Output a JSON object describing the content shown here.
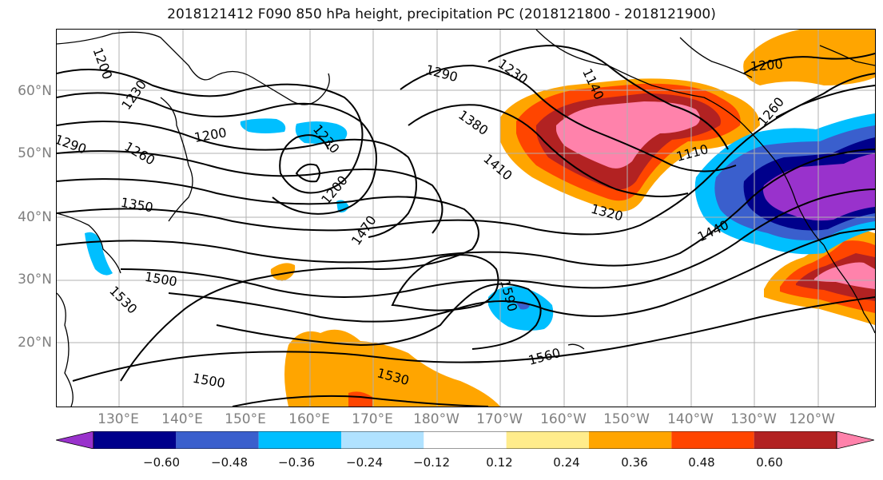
{
  "title": "2018121412 F090 850 hPa height, precipitation PC (2018121800 - 2018121900)",
  "lat_labels": [
    "60°N",
    "50°N",
    "40°N",
    "30°N",
    "20°N"
  ],
  "lon_labels": [
    "130°E",
    "140°E",
    "150°E",
    "160°E",
    "170°E",
    "180°W",
    "170°W",
    "160°W",
    "150°W",
    "140°W",
    "130°W",
    "120°W"
  ],
  "contour_labels": [
    "1200",
    "1230",
    "1290",
    "1260",
    "1350",
    "1500",
    "1530",
    "1200",
    "1230",
    "1200",
    "1470",
    "1500",
    "1530",
    "1590",
    "1560",
    "1290",
    "1230",
    "1140",
    "1380",
    "1410",
    "1320",
    "1110",
    "1440",
    "1200",
    "1260"
  ],
  "colorbar": {
    "colors": [
      "#9932cc",
      "#00008b",
      "#3a5fcd",
      "#00bfff",
      "#b0e2ff",
      "#ffffff",
      "#ffec8b",
      "#ffa500",
      "#ff4500",
      "#b22222",
      "#ff82ab"
    ],
    "tick_labels": [
      "−0.60",
      "−0.48",
      "−0.36",
      "−0.24",
      "−0.12",
      "0.12",
      "0.24",
      "0.36",
      "0.48",
      "0.60"
    ]
  }
}
